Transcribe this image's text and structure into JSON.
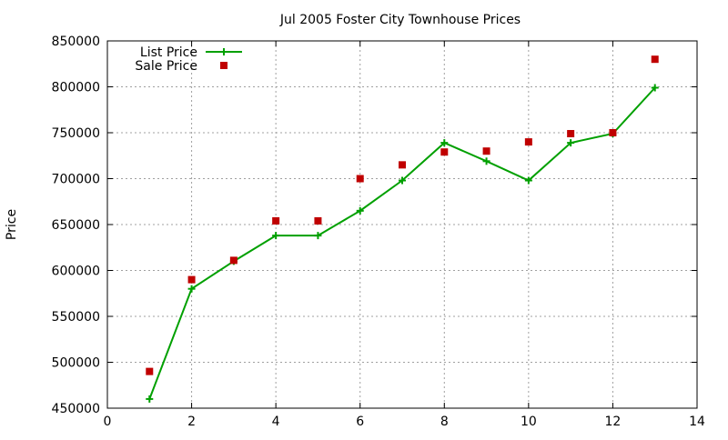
{
  "chart_data": {
    "type": "line",
    "title": "Jul 2005 Foster City Townhouse Prices",
    "xlabel": "",
    "ylabel": "Price",
    "xlim": [
      0,
      14
    ],
    "ylim": [
      450000,
      850000
    ],
    "xticks": [
      0,
      2,
      4,
      6,
      8,
      10,
      12,
      14
    ],
    "yticks": [
      450000,
      500000,
      550000,
      600000,
      650000,
      700000,
      750000,
      800000,
      850000
    ],
    "grid": true,
    "legend_position": "top-left",
    "series": [
      {
        "name": "List Price",
        "style": "lines+points",
        "marker": "plus",
        "color": "#00a000",
        "x": [
          1,
          2,
          3,
          4,
          5,
          6,
          7,
          8,
          9,
          10,
          11,
          12,
          13
        ],
        "y": [
          460000,
          580000,
          610000,
          638000,
          638000,
          665000,
          698000,
          739000,
          719000,
          698000,
          739000,
          749000,
          799000
        ]
      },
      {
        "name": "Sale Price",
        "style": "points",
        "marker": "square",
        "color": "#c00000",
        "x": [
          1,
          2,
          3,
          4,
          5,
          6,
          7,
          8,
          9,
          10,
          11,
          12,
          13
        ],
        "y": [
          490000,
          590000,
          611000,
          654000,
          654000,
          700000,
          715000,
          729000,
          730000,
          740000,
          749000,
          750000,
          830000
        ]
      }
    ]
  }
}
